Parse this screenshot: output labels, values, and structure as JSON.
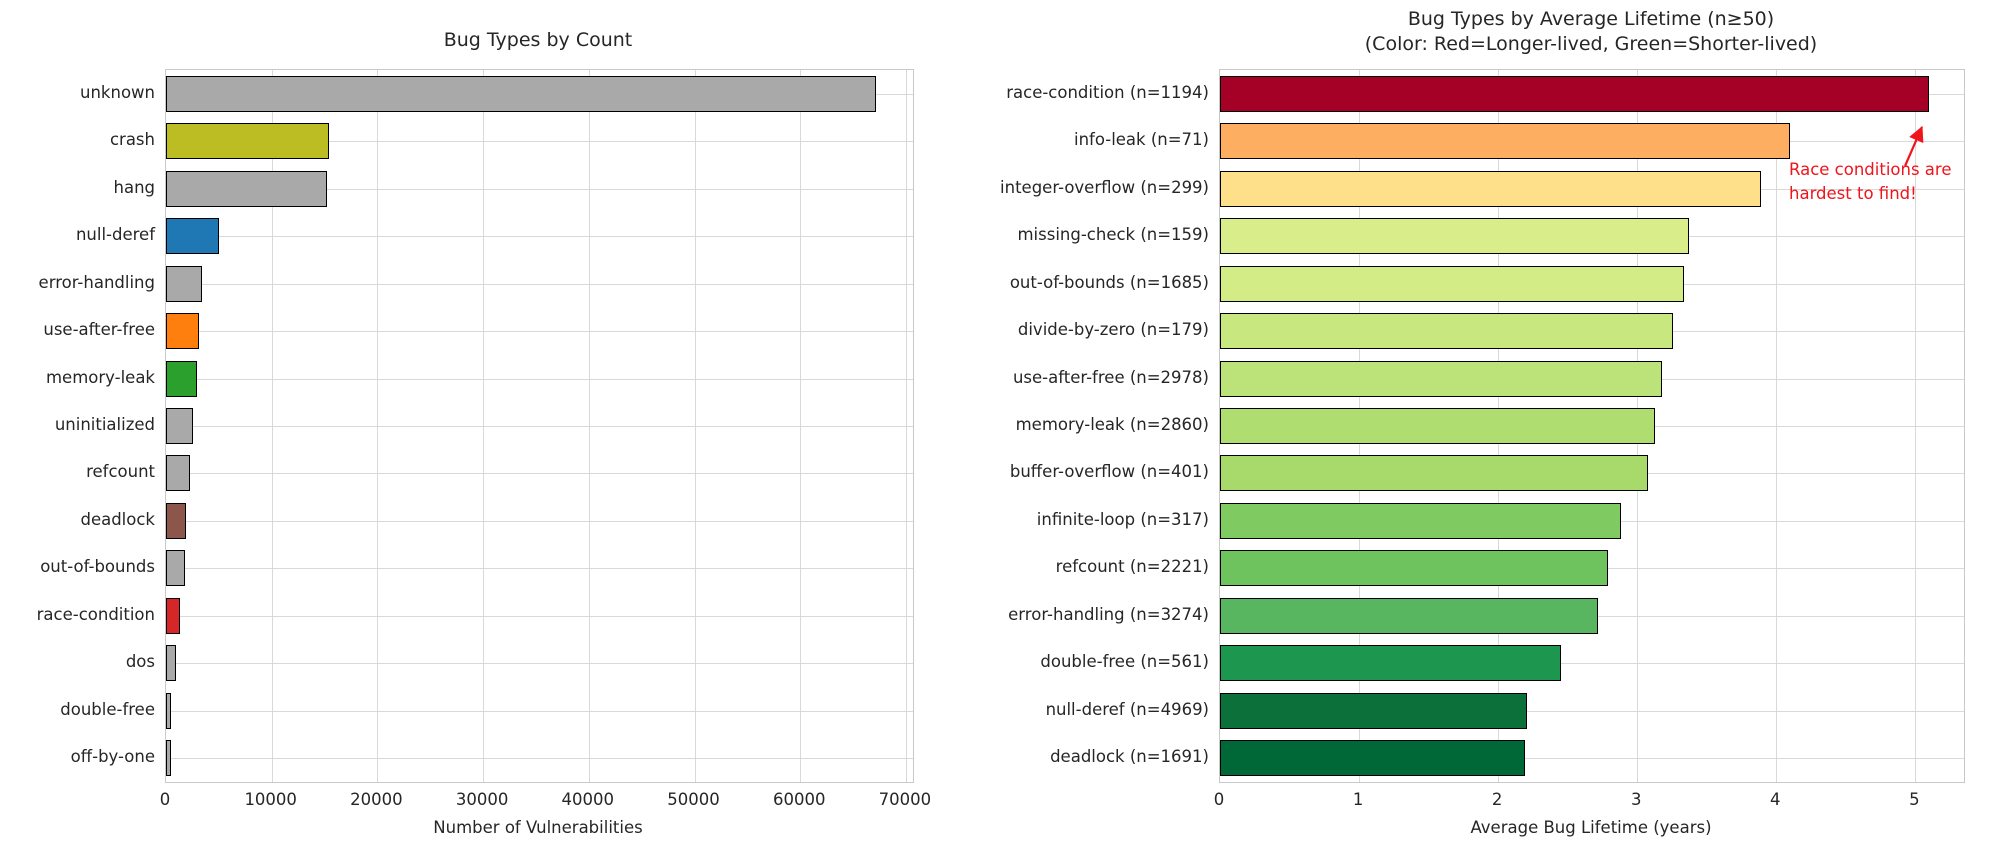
{
  "accent_colors": {
    "bar_edge": "#000000",
    "grid": "#d9d9d9",
    "annotation_red": "#f0141c",
    "default_gray": "#a9a9a9"
  },
  "chart_data": [
    {
      "type": "bar",
      "orientation": "horizontal",
      "title": "Bug Types by Count",
      "xlabel": "Number of Vulnerabilities",
      "xlim": [
        0,
        70670
      ],
      "grid": true,
      "xticks": [
        0,
        10000,
        20000,
        30000,
        40000,
        50000,
        60000,
        70000
      ],
      "xtick_labels": [
        "0",
        "10000",
        "20000",
        "30000",
        "40000",
        "50000",
        "60000",
        "70000"
      ],
      "categories": [
        "unknown",
        "crash",
        "hang",
        "null-deref",
        "error-handling",
        "use-after-free",
        "memory-leak",
        "uninitialized",
        "refcount",
        "deadlock",
        "out-of-bounds",
        "race-condition",
        "dos",
        "double-free",
        "off-by-one"
      ],
      "values": [
        67200,
        15400,
        15250,
        5000,
        3400,
        3100,
        2950,
        2600,
        2300,
        1850,
        1800,
        1330,
        900,
        520,
        450
      ],
      "colors": [
        "#a9a9a9",
        "#bcbd22",
        "#a9a9a9",
        "#1f77b4",
        "#a9a9a9",
        "#ff7f0e",
        "#2ca02c",
        "#a9a9a9",
        "#a9a9a9",
        "#8c564b",
        "#a9a9a9",
        "#d62728",
        "#a9a9a9",
        "#a9a9a9",
        "#a9a9a9"
      ]
    },
    {
      "type": "bar",
      "orientation": "horizontal",
      "title": "Bug Types by Average Lifetime (n≥50)",
      "subtitle": "(Color: Red=Longer-lived, Green=Shorter-lived)",
      "xlabel": "Average Bug Lifetime (years)",
      "xlim": [
        0,
        5.35
      ],
      "grid": true,
      "xticks": [
        0,
        1,
        2,
        3,
        4,
        5
      ],
      "xtick_labels": [
        "0",
        "1",
        "2",
        "3",
        "4",
        "5"
      ],
      "categories": [
        "race-condition (n=1194)",
        "info-leak (n=71)",
        "integer-overflow (n=299)",
        "missing-check (n=159)",
        "out-of-bounds (n=1685)",
        "divide-by-zero (n=179)",
        "use-after-free (n=2978)",
        "memory-leak (n=2860)",
        "buffer-overflow (n=401)",
        "infinite-loop (n=317)",
        "refcount (n=2221)",
        "error-handling (n=3274)",
        "double-free (n=561)",
        "null-deref (n=4969)",
        "deadlock (n=1691)"
      ],
      "sample_sizes": [
        1194,
        71,
        299,
        159,
        1685,
        179,
        2978,
        2860,
        401,
        317,
        2221,
        3274,
        561,
        4969,
        1691
      ],
      "values": [
        5.1,
        4.1,
        3.89,
        3.37,
        3.34,
        3.26,
        3.18,
        3.13,
        3.08,
        2.88,
        2.79,
        2.72,
        2.45,
        2.21,
        2.19
      ],
      "colors": [
        "#a50026",
        "#fdae61",
        "#fee08b",
        "#d9ee8a",
        "#d3ec85",
        "#c9e77f",
        "#bce27a",
        "#b0dd70",
        "#a8d96b",
        "#7fcb62",
        "#6ec35e",
        "#57b65f",
        "#1d9750",
        "#0b7039",
        "#006837"
      ],
      "annotation": {
        "line1": "Race conditions are",
        "line2": "hardest to find!",
        "color": "#f0141c",
        "target": "race-condition bar end"
      }
    }
  ]
}
